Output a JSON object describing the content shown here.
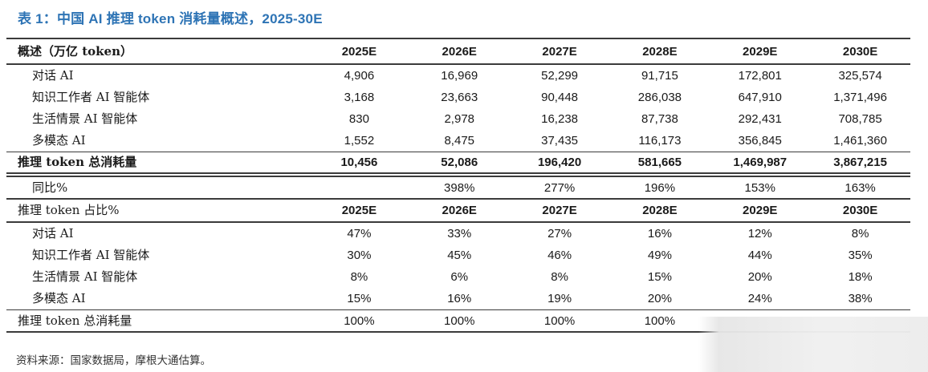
{
  "title": "表 1：中国 AI 推理 token 消耗量概述，2025-30E",
  "source": "资料来源：国家数据局，摩根大通估算。",
  "colors": {
    "title_blue": "#2e74b5",
    "rule_line": "#3b3b3b"
  },
  "sections": {
    "s1": {
      "header_label": "概述（万亿 token）",
      "years": [
        "2025E",
        "2026E",
        "2027E",
        "2028E",
        "2029E",
        "2030E"
      ],
      "rows": [
        {
          "label": "对话 AI",
          "v": [
            "4,906",
            "16,969",
            "52,299",
            "91,715",
            "172,801",
            "325,574"
          ]
        },
        {
          "label": "知识工作者 AI 智能体",
          "v": [
            "3,168",
            "23,663",
            "90,448",
            "286,038",
            "647,910",
            "1,371,496"
          ]
        },
        {
          "label": "生活情景 AI 智能体",
          "v": [
            "830",
            "2,978",
            "16,238",
            "87,738",
            "292,431",
            "708,785"
          ]
        },
        {
          "label": "多模态 AI",
          "v": [
            "1,552",
            "8,475",
            "37,435",
            "116,173",
            "356,845",
            "1,461,360"
          ]
        }
      ],
      "total": {
        "label": "推理 token 总消耗量",
        "v": [
          "10,456",
          "52,086",
          "196,420",
          "581,665",
          "1,469,987",
          "3,867,215"
        ]
      },
      "yoy": {
        "label": "同比%",
        "v": [
          "",
          "398%",
          "277%",
          "196%",
          "153%",
          "163%"
        ]
      }
    },
    "s2": {
      "header_label": "推理 token 占比%",
      "years": [
        "2025E",
        "2026E",
        "2027E",
        "2028E",
        "2029E",
        "2030E"
      ],
      "rows": [
        {
          "label": "对话 AI",
          "v": [
            "47%",
            "33%",
            "27%",
            "16%",
            "12%",
            "8%"
          ]
        },
        {
          "label": "知识工作者 AI 智能体",
          "v": [
            "30%",
            "45%",
            "46%",
            "49%",
            "44%",
            "35%"
          ]
        },
        {
          "label": "生活情景 AI 智能体",
          "v": [
            "8%",
            "6%",
            "8%",
            "15%",
            "20%",
            "18%"
          ]
        },
        {
          "label": "多模态 AI",
          "v": [
            "15%",
            "16%",
            "19%",
            "20%",
            "24%",
            "38%"
          ]
        }
      ],
      "total": {
        "label": "推理 token 总消耗量",
        "v": [
          "100%",
          "100%",
          "100%",
          "100%",
          "",
          ""
        ]
      }
    }
  }
}
